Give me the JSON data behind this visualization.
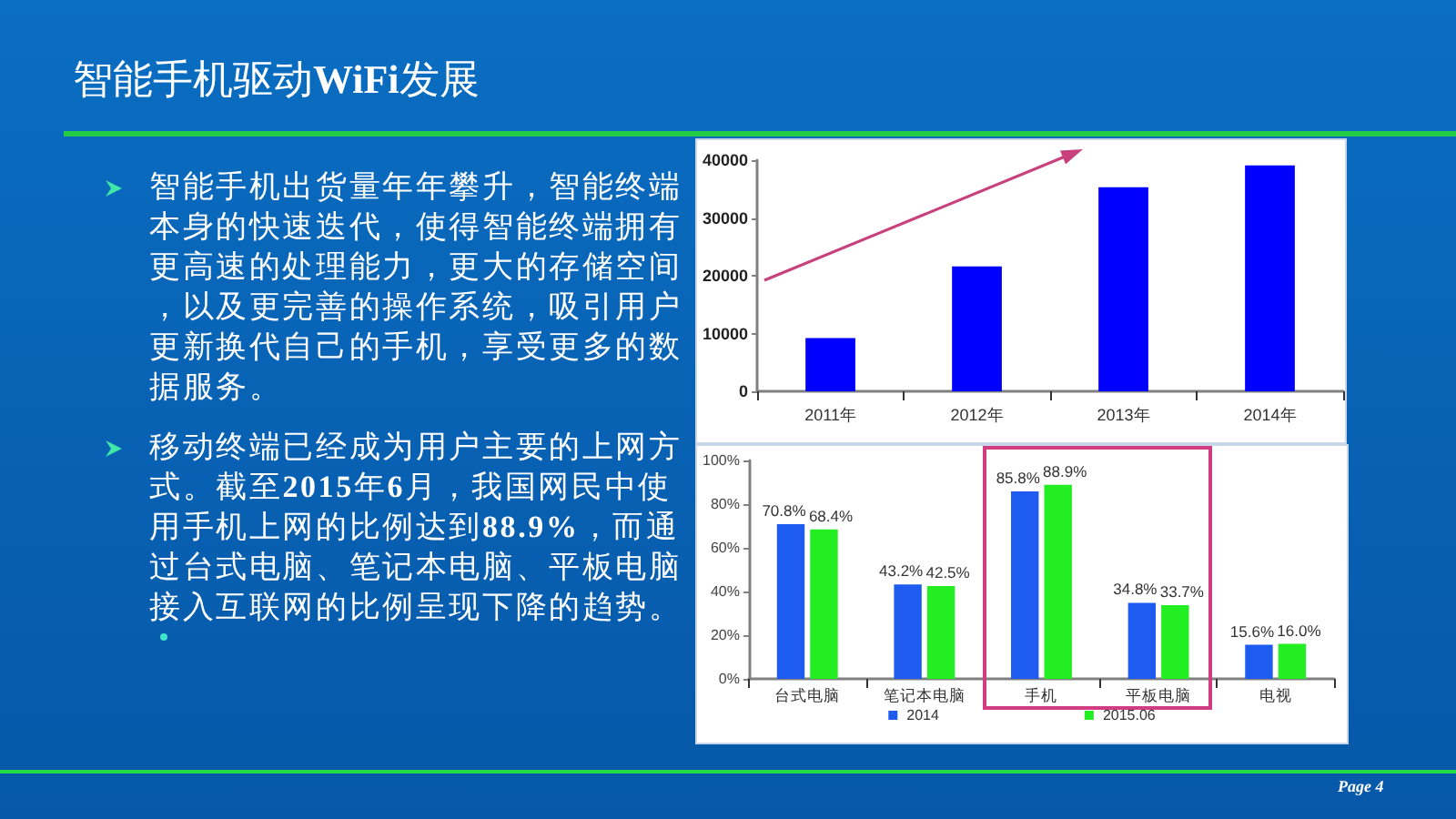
{
  "chart_data": [
    {
      "type": "other",
      "title": "智能手机驱动WiFi发展",
      "annotations": [
        "智能手机出货量年年攀升，智能终端本身的快速迭代，使得智能终端拥有更高速的处理能力，更大的存储空间，以及更完善的操作系统，吸引用户更新换代自己的手机，享受更多的数据服务。",
        "移动终端已经成为用户主要的上网方式。截至2015年6月，我国网民中使用手机上网的比例达到88.9%，而通过台式电脑、笔记本电脑、平板电脑接入互联网的比例呈现下降的趋势。",
        "Page 4"
      ]
    },
    {
      "type": "bar",
      "categories": [
        "2011年",
        "2012年",
        "2013年",
        "2014年"
      ],
      "values": [
        9200,
        21600,
        35300,
        39100
      ],
      "color": "#0000ff",
      "ylim": [
        0,
        40000
      ],
      "yticks": [
        0,
        10000,
        20000,
        30000,
        40000
      ],
      "grid": false
    },
    {
      "type": "bar",
      "categories": [
        "台式电脑",
        "笔记本电脑",
        "手机",
        "平板电脑",
        "电视"
      ],
      "series": [
        {
          "name": "2014",
          "color": "#1e5cf0",
          "values": [
            70.8,
            43.2,
            85.8,
            34.8,
            15.6
          ],
          "value_labels": [
            "70.8%",
            "43.2%",
            "85.8%",
            "34.8%",
            "15.6%"
          ]
        },
        {
          "name": "2015.06",
          "color": "#22ee22",
          "values": [
            68.4,
            42.5,
            88.9,
            33.7,
            16.0
          ],
          "value_labels": [
            "68.4%",
            "42.5%",
            "88.9%",
            "33.7%",
            "16.0%"
          ]
        }
      ],
      "ylim": [
        0,
        100
      ],
      "yticks": [
        {
          "value": 0,
          "label": "0%"
        },
        {
          "value": 20,
          "label": "20%"
        },
        {
          "value": 40,
          "label": "40%"
        },
        {
          "value": 60,
          "label": "60%"
        },
        {
          "value": 80,
          "label": "80%"
        },
        {
          "value": 100,
          "label": "100%"
        }
      ],
      "grid": false,
      "legend": "bottom"
    }
  ]
}
